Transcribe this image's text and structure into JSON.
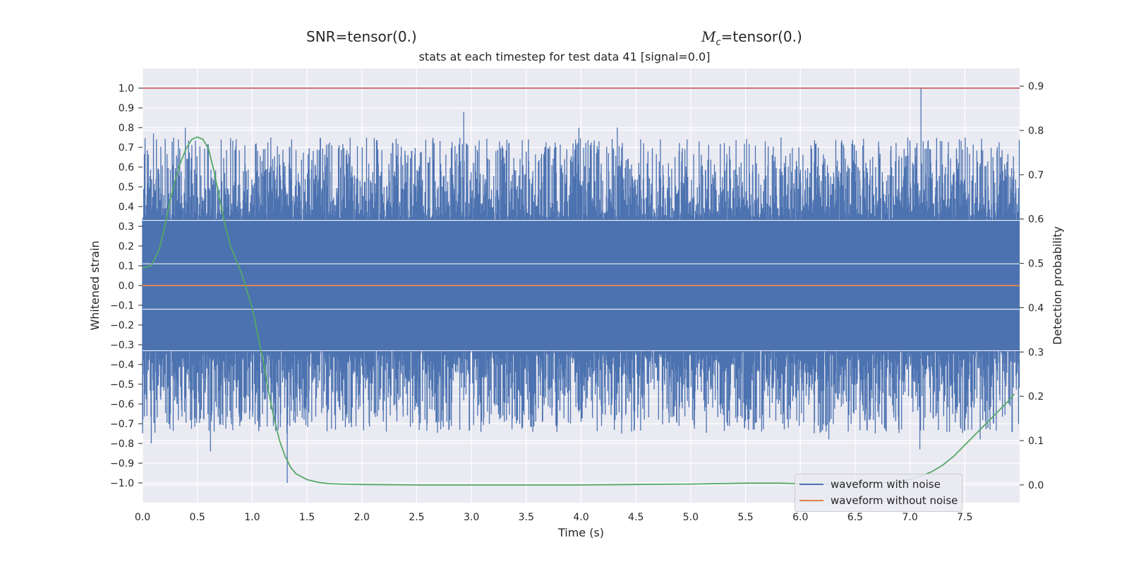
{
  "header": {
    "snr_label": "SNR=tensor(0.)",
    "mc_symbol": "M",
    "mc_subscript": "c",
    "mc_value": "=tensor(0.)"
  },
  "chart_data": {
    "type": "line",
    "title": "stats at each timestep for test data 41 [signal=0.0]",
    "xlabel": "Time (s)",
    "ylabel": "Whitened strain",
    "y2label": "Detection probability",
    "xlim": [
      0.0,
      8.0
    ],
    "ylim": [
      -1.1,
      1.1
    ],
    "y2lim": [
      -0.04,
      0.94
    ],
    "x_ticks": [
      "0.0",
      "0.5",
      "1.0",
      "1.5",
      "2.0",
      "2.5",
      "3.0",
      "3.5",
      "4.0",
      "4.5",
      "5.0",
      "5.5",
      "6.0",
      "6.5",
      "7.0",
      "7.5"
    ],
    "y_ticks": [
      "1.0",
      "0.9",
      "0.8",
      "0.7",
      "0.6",
      "0.5",
      "0.4",
      "0.3",
      "0.2",
      "0.1",
      "0.0",
      "−0.1",
      "−0.2",
      "−0.3",
      "−0.4",
      "−0.5",
      "−0.6",
      "−0.7",
      "−0.8",
      "−0.9",
      "−1.0"
    ],
    "y2_ticks": [
      "0.9",
      "0.8",
      "0.7",
      "0.6",
      "0.5",
      "0.4",
      "0.3",
      "0.2",
      "0.1",
      "0.0"
    ],
    "grid": true,
    "legend_position": "lower-right",
    "colors": {
      "noise": "#4c72b0",
      "clean": "#dd8452",
      "probability": "#55a868",
      "threshold": "#c44e52",
      "axes_bg": "#eaeaf2",
      "grid": "#ffffff"
    },
    "series": [
      {
        "name": "waveform with noise",
        "axis": "left",
        "style": "dense-noise",
        "envelope_typical": [
          -0.5,
          0.5
        ],
        "peaks": [
          {
            "x": 0.1,
            "y": 0.77
          },
          {
            "x": 0.39,
            "y": 0.8
          },
          {
            "x": 1.17,
            "y": 0.75
          },
          {
            "x": 2.93,
            "y": 0.88
          },
          {
            "x": 3.98,
            "y": 0.8
          },
          {
            "x": 4.33,
            "y": 0.8
          },
          {
            "x": 7.1,
            "y": 1.0
          },
          {
            "x": 0.08,
            "y": -0.8
          },
          {
            "x": 0.62,
            "y": -0.84
          },
          {
            "x": 1.32,
            "y": -1.0
          },
          {
            "x": 4.37,
            "y": -0.75
          },
          {
            "x": 5.58,
            "y": -0.73
          },
          {
            "x": 6.26,
            "y": -0.78
          },
          {
            "x": 7.09,
            "y": -0.83
          },
          {
            "x": 7.64,
            "y": -0.78
          }
        ]
      },
      {
        "name": "waveform without noise",
        "axis": "left",
        "x": [
          0.0,
          8.0
        ],
        "y": [
          0.0,
          0.0
        ]
      },
      {
        "name": "",
        "axis": "right",
        "x": [
          0.0,
          0.08,
          0.15,
          0.2,
          0.25,
          0.3,
          0.35,
          0.4,
          0.45,
          0.5,
          0.55,
          0.6,
          0.65,
          0.7,
          0.75,
          0.8,
          0.85,
          0.9,
          0.95,
          1.0,
          1.05,
          1.1,
          1.15,
          1.2,
          1.25,
          1.3,
          1.35,
          1.4,
          1.5,
          1.6,
          1.7,
          1.8,
          2.0,
          2.5,
          3.0,
          3.5,
          4.0,
          4.5,
          5.0,
          5.5,
          5.8,
          6.0,
          6.3,
          6.6,
          6.8,
          7.0,
          7.1,
          7.2,
          7.3,
          7.4,
          7.5,
          7.6,
          7.7,
          7.8,
          7.9,
          7.95
        ],
        "y": [
          0.49,
          0.495,
          0.53,
          0.58,
          0.64,
          0.69,
          0.73,
          0.76,
          0.78,
          0.785,
          0.78,
          0.76,
          0.71,
          0.65,
          0.59,
          0.54,
          0.51,
          0.48,
          0.44,
          0.4,
          0.34,
          0.28,
          0.21,
          0.15,
          0.1,
          0.065,
          0.04,
          0.025,
          0.012,
          0.006,
          0.003,
          0.002,
          0.001,
          0.0,
          0.0,
          0.0,
          0.0,
          0.001,
          0.002,
          0.004,
          0.004,
          0.003,
          0.002,
          0.003,
          0.006,
          0.012,
          0.02,
          0.03,
          0.045,
          0.065,
          0.09,
          0.115,
          0.14,
          0.165,
          0.19,
          0.205
        ]
      },
      {
        "name": "",
        "axis": "left",
        "x": [
          0.0,
          8.0
        ],
        "y": [
          1.0,
          1.0
        ]
      }
    ]
  }
}
